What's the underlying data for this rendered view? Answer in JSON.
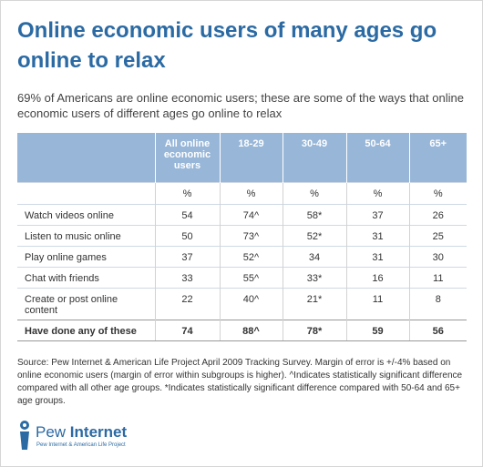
{
  "title": "Online economic users of many ages go online to relax",
  "subtitle": "69% of Americans are online economic users; these are some of the ways that online economic users of different ages go online to relax",
  "chart_data": {
    "type": "table",
    "columns": [
      "",
      "All online economic users",
      "18-29",
      "30-49",
      "50-64",
      "65+"
    ],
    "units_row": [
      "",
      "%",
      "%",
      "%",
      "%",
      "%"
    ],
    "rows": [
      {
        "label": "Watch videos online",
        "values": [
          "54",
          "74^",
          "58*",
          "37",
          "26"
        ]
      },
      {
        "label": "Listen to music online",
        "values": [
          "50",
          "73^",
          "52*",
          "31",
          "25"
        ]
      },
      {
        "label": "Play online games",
        "values": [
          "37",
          "52^",
          "34",
          "31",
          "30"
        ]
      },
      {
        "label": "Chat with friends",
        "values": [
          "33",
          "55^",
          "33*",
          "16",
          "11"
        ]
      },
      {
        "label": "Create or post online content",
        "values": [
          "22",
          "40^",
          "21*",
          "11",
          "8"
        ]
      }
    ],
    "total_row": {
      "label": "Have done any of these",
      "values": [
        "74",
        "88^",
        "78*",
        "59",
        "56"
      ]
    }
  },
  "source": "Source: Pew Internet & American Life Project April 2009 Tracking Survey. Margin of error is +/-4% based on online economic users (margin of error within subgroups is higher). ^Indicates statistically significant difference compared with all other age groups. *Indicates statistically significant difference compared with 50-64 and 65+ age groups.",
  "logo": {
    "word_light": "Pew ",
    "word_bold": "Internet",
    "sub": "Pew Internet & American Life Project"
  },
  "colors": {
    "title": "#2b6aa3",
    "header_bg": "#97b6d8",
    "header_text": "#ffffff"
  }
}
